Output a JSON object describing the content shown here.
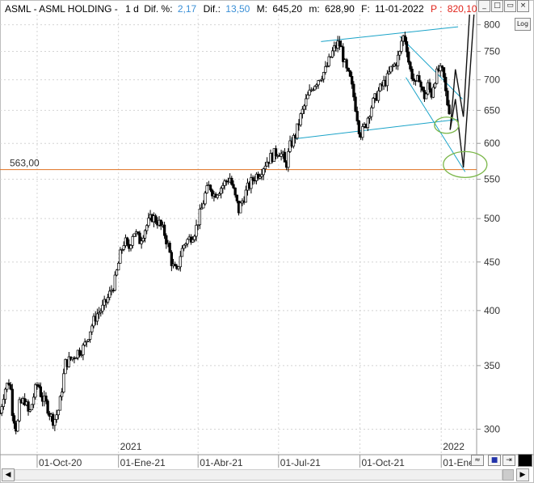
{
  "header": {
    "symbol": "ASML - ASML HOLDING -",
    "period": "1 d",
    "dif_pct_label": "Dif. %:",
    "dif_pct_value": "2,17",
    "dif_label": "Dif.:",
    "dif_value": "13,50",
    "max_label": "M:",
    "max_value": "645,20",
    "min_label": "m:",
    "min_value": "628,90",
    "date_label": "F:",
    "date_value": "11-01-2022",
    "price_label": "P :",
    "price_value": "820,10"
  },
  "buttons": {
    "log": "Log"
  },
  "colors": {
    "up_value": "#3a8fd6",
    "price": "#e0241b",
    "support": "#e07020",
    "channel": "#1aa3c8",
    "ellipse": "#7ab648"
  },
  "chart_data": {
    "type": "candlestick",
    "y_axis": {
      "scale": "log",
      "range": [
        282,
        820
      ],
      "ticks": [
        "800",
        "750",
        "700",
        "650",
        "600",
        "550",
        "500",
        "450",
        "400",
        "350",
        "300"
      ]
    },
    "x_axis": {
      "range": [
        "2020-08-20",
        "2022-02-10"
      ],
      "ticks": [
        {
          "date": "2020-10-01",
          "label": "01-Oct-20"
        },
        {
          "date": "2021-01-01",
          "label": "01-Ene-21"
        },
        {
          "date": "2021-04-01",
          "label": "01-Abr-21"
        },
        {
          "date": "2021-07-01",
          "label": "01-Jul-21"
        },
        {
          "date": "2021-10-01",
          "label": "01-Oct-21"
        },
        {
          "date": "2022-01-01",
          "label": "01-Ene-"
        }
      ],
      "year_markers": [
        {
          "date": "2021-01-01",
          "label": "2021"
        },
        {
          "date": "2022-01-01",
          "label": "2022"
        }
      ]
    },
    "grid": true,
    "horizontal_line": {
      "value": 563,
      "label": "563,00"
    },
    "price_path": [
      [
        "2020-08-20",
        312
      ],
      [
        "2020-08-25",
        330
      ],
      [
        "2020-08-31",
        338
      ],
      [
        "2020-09-03",
        314
      ],
      [
        "2020-09-08",
        298
      ],
      [
        "2020-09-11",
        318
      ],
      [
        "2020-09-17",
        322
      ],
      [
        "2020-09-22",
        310
      ],
      [
        "2020-09-28",
        328
      ],
      [
        "2020-10-02",
        336
      ],
      [
        "2020-10-06",
        324
      ],
      [
        "2020-10-12",
        318
      ],
      [
        "2020-10-16",
        310
      ],
      [
        "2020-10-20",
        306
      ],
      [
        "2020-10-26",
        316
      ],
      [
        "2020-11-02",
        352
      ],
      [
        "2020-11-09",
        356
      ],
      [
        "2020-11-16",
        362
      ],
      [
        "2020-11-23",
        366
      ],
      [
        "2020-11-30",
        382
      ],
      [
        "2020-12-07",
        396
      ],
      [
        "2020-12-14",
        402
      ],
      [
        "2020-12-21",
        414
      ],
      [
        "2020-12-28",
        430
      ],
      [
        "2021-01-04",
        462
      ],
      [
        "2021-01-08",
        475
      ],
      [
        "2021-01-12",
        462
      ],
      [
        "2021-01-18",
        486
      ],
      [
        "2021-01-25",
        474
      ],
      [
        "2021-02-01",
        490
      ],
      [
        "2021-02-08",
        502
      ],
      [
        "2021-02-15",
        496
      ],
      [
        "2021-02-22",
        482
      ],
      [
        "2021-02-26",
        468
      ],
      [
        "2021-03-03",
        446
      ],
      [
        "2021-03-08",
        438
      ],
      [
        "2021-03-12",
        458
      ],
      [
        "2021-03-17",
        472
      ],
      [
        "2021-03-22",
        476
      ],
      [
        "2021-03-29",
        486
      ],
      [
        "2021-04-05",
        512
      ],
      [
        "2021-04-09",
        530
      ],
      [
        "2021-04-14",
        542
      ],
      [
        "2021-04-19",
        530
      ],
      [
        "2021-04-26",
        538
      ],
      [
        "2021-05-03",
        548
      ],
      [
        "2021-05-07",
        552
      ],
      [
        "2021-05-12",
        530
      ],
      [
        "2021-05-17",
        510
      ],
      [
        "2021-05-21",
        522
      ],
      [
        "2021-05-27",
        538
      ],
      [
        "2021-06-03",
        552
      ],
      [
        "2021-06-10",
        560
      ],
      [
        "2021-06-17",
        574
      ],
      [
        "2021-06-24",
        582
      ],
      [
        "2021-07-01",
        590
      ],
      [
        "2021-07-06",
        580
      ],
      [
        "2021-07-09",
        566
      ],
      [
        "2021-07-14",
        596
      ],
      [
        "2021-07-20",
        612
      ],
      [
        "2021-07-26",
        640
      ],
      [
        "2021-08-02",
        668
      ],
      [
        "2021-08-09",
        690
      ],
      [
        "2021-08-16",
        704
      ],
      [
        "2021-08-23",
        716
      ],
      [
        "2021-08-27",
        732
      ],
      [
        "2021-09-01",
        752
      ],
      [
        "2021-09-07",
        766
      ],
      [
        "2021-09-10",
        754
      ],
      [
        "2021-09-15",
        718
      ],
      [
        "2021-09-20",
        700
      ],
      [
        "2021-09-24",
        672
      ],
      [
        "2021-09-28",
        640
      ],
      [
        "2021-10-01",
        614
      ],
      [
        "2021-10-04",
        618
      ],
      [
        "2021-10-08",
        630
      ],
      [
        "2021-10-13",
        654
      ],
      [
        "2021-10-18",
        668
      ],
      [
        "2021-10-22",
        680
      ],
      [
        "2021-10-27",
        692
      ],
      [
        "2021-11-01",
        702
      ],
      [
        "2021-11-05",
        718
      ],
      [
        "2021-11-10",
        728
      ],
      [
        "2021-11-15",
        746
      ],
      [
        "2021-11-18",
        780
      ],
      [
        "2021-11-22",
        770
      ],
      [
        "2021-11-26",
        720
      ],
      [
        "2021-11-30",
        704
      ],
      [
        "2021-12-03",
        690
      ],
      [
        "2021-12-07",
        706
      ],
      [
        "2021-12-10",
        680
      ],
      [
        "2021-12-14",
        670
      ],
      [
        "2021-12-17",
        690
      ],
      [
        "2021-12-21",
        676
      ],
      [
        "2021-12-24",
        700
      ],
      [
        "2021-12-29",
        716
      ],
      [
        "2022-01-03",
        712
      ],
      [
        "2022-01-05",
        690
      ],
      [
        "2022-01-07",
        666
      ],
      [
        "2022-01-10",
        652
      ],
      [
        "2022-01-11",
        640
      ]
    ],
    "projection_paths": [
      [
        [
          "2022-01-11",
          620
        ],
        [
          "2022-01-17",
          718
        ],
        [
          "2022-01-26",
          640
        ],
        [
          "2022-02-02",
          820
        ]
      ],
      [
        [
          "2022-01-11",
          620
        ],
        [
          "2022-01-17",
          668
        ],
        [
          "2022-01-26",
          566
        ],
        [
          "2022-02-07",
          820
        ]
      ]
    ],
    "channel_lines": [
      [
        [
          "2021-07-15",
          606
        ],
        [
          "2022-01-20",
          636
        ]
      ],
      [
        [
          "2021-08-18",
          768
        ],
        [
          "2022-01-20",
          796
        ]
      ],
      [
        [
          "2021-11-15",
          778
        ],
        [
          "2022-01-25",
          668
        ]
      ],
      [
        [
          "2021-11-22",
          704
        ],
        [
          "2022-01-28",
          560
        ]
      ]
    ],
    "ellipses": [
      {
        "date": "2022-01-07",
        "value": 627
      },
      {
        "date": "2022-01-28",
        "value": 570
      }
    ]
  }
}
